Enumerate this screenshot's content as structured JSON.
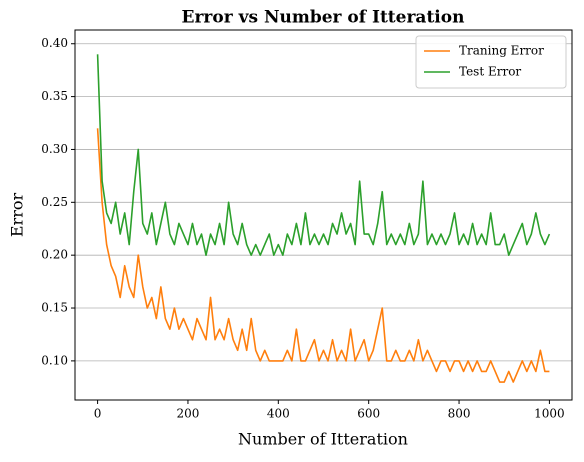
{
  "chart_data": {
    "type": "line",
    "title": "Error vs Number of Itteration",
    "x_label": "Number of Itteration",
    "y_label": "Error",
    "x": [
      0,
      10,
      20,
      30,
      40,
      50,
      60,
      70,
      80,
      90,
      100,
      110,
      120,
      130,
      140,
      150,
      160,
      170,
      180,
      190,
      200,
      210,
      220,
      230,
      240,
      250,
      260,
      270,
      280,
      290,
      300,
      310,
      320,
      330,
      340,
      350,
      360,
      370,
      380,
      390,
      400,
      410,
      420,
      430,
      440,
      450,
      460,
      470,
      480,
      490,
      500,
      510,
      520,
      530,
      540,
      550,
      560,
      570,
      580,
      590,
      600,
      610,
      620,
      630,
      640,
      650,
      660,
      670,
      680,
      690,
      700,
      710,
      720,
      730,
      740,
      750,
      760,
      770,
      780,
      790,
      800,
      810,
      820,
      830,
      840,
      850,
      860,
      870,
      880,
      890,
      900,
      910,
      920,
      930,
      940,
      950,
      960,
      970,
      980,
      990,
      1000
    ],
    "series": [
      {
        "name": "Traning Error",
        "color": "#ff7f0e",
        "values": [
          0.32,
          0.25,
          0.21,
          0.19,
          0.18,
          0.16,
          0.19,
          0.17,
          0.16,
          0.2,
          0.17,
          0.15,
          0.16,
          0.14,
          0.17,
          0.14,
          0.13,
          0.15,
          0.13,
          0.14,
          0.13,
          0.12,
          0.14,
          0.13,
          0.12,
          0.16,
          0.12,
          0.13,
          0.12,
          0.14,
          0.12,
          0.11,
          0.13,
          0.11,
          0.14,
          0.11,
          0.1,
          0.11,
          0.1,
          0.1,
          0.1,
          0.1,
          0.11,
          0.1,
          0.13,
          0.1,
          0.1,
          0.11,
          0.12,
          0.1,
          0.11,
          0.1,
          0.12,
          0.1,
          0.11,
          0.1,
          0.13,
          0.1,
          0.11,
          0.12,
          0.1,
          0.11,
          0.13,
          0.15,
          0.1,
          0.1,
          0.11,
          0.1,
          0.1,
          0.11,
          0.1,
          0.12,
          0.1,
          0.11,
          0.1,
          0.09,
          0.1,
          0.1,
          0.09,
          0.1,
          0.1,
          0.09,
          0.1,
          0.09,
          0.1,
          0.09,
          0.09,
          0.1,
          0.09,
          0.08,
          0.08,
          0.09,
          0.08,
          0.09,
          0.1,
          0.09,
          0.1,
          0.09,
          0.11,
          0.09,
          0.09
        ]
      },
      {
        "name": "Test Error",
        "color": "#2ca02c",
        "values": [
          0.39,
          0.27,
          0.24,
          0.23,
          0.25,
          0.22,
          0.24,
          0.21,
          0.26,
          0.3,
          0.23,
          0.22,
          0.24,
          0.21,
          0.23,
          0.25,
          0.22,
          0.21,
          0.23,
          0.22,
          0.21,
          0.23,
          0.21,
          0.22,
          0.2,
          0.22,
          0.21,
          0.23,
          0.21,
          0.25,
          0.22,
          0.21,
          0.23,
          0.21,
          0.2,
          0.21,
          0.2,
          0.21,
          0.22,
          0.2,
          0.21,
          0.2,
          0.22,
          0.21,
          0.23,
          0.21,
          0.24,
          0.21,
          0.22,
          0.21,
          0.22,
          0.21,
          0.23,
          0.22,
          0.24,
          0.22,
          0.23,
          0.21,
          0.27,
          0.22,
          0.22,
          0.21,
          0.23,
          0.26,
          0.21,
          0.22,
          0.21,
          0.22,
          0.21,
          0.23,
          0.21,
          0.22,
          0.27,
          0.21,
          0.22,
          0.21,
          0.22,
          0.21,
          0.22,
          0.24,
          0.21,
          0.22,
          0.21,
          0.23,
          0.21,
          0.22,
          0.21,
          0.24,
          0.21,
          0.21,
          0.22,
          0.2,
          0.21,
          0.22,
          0.23,
          0.21,
          0.22,
          0.24,
          0.22,
          0.21,
          0.22
        ]
      }
    ],
    "xlim": [
      -50,
      1050
    ],
    "ylim": [
      0.063,
      0.413
    ],
    "xticks": [
      0,
      200,
      400,
      600,
      800,
      1000
    ],
    "yticks": [
      {
        "value": 0.1,
        "label": "0.10"
      },
      0.15,
      {
        "value": 0.2,
        "label": "0.20"
      },
      0.25,
      {
        "value": 0.3,
        "label": "0.30"
      },
      0.35,
      {
        "value": 0.4,
        "label": "0.40"
      }
    ],
    "grid": "y",
    "legend": "upper right"
  }
}
